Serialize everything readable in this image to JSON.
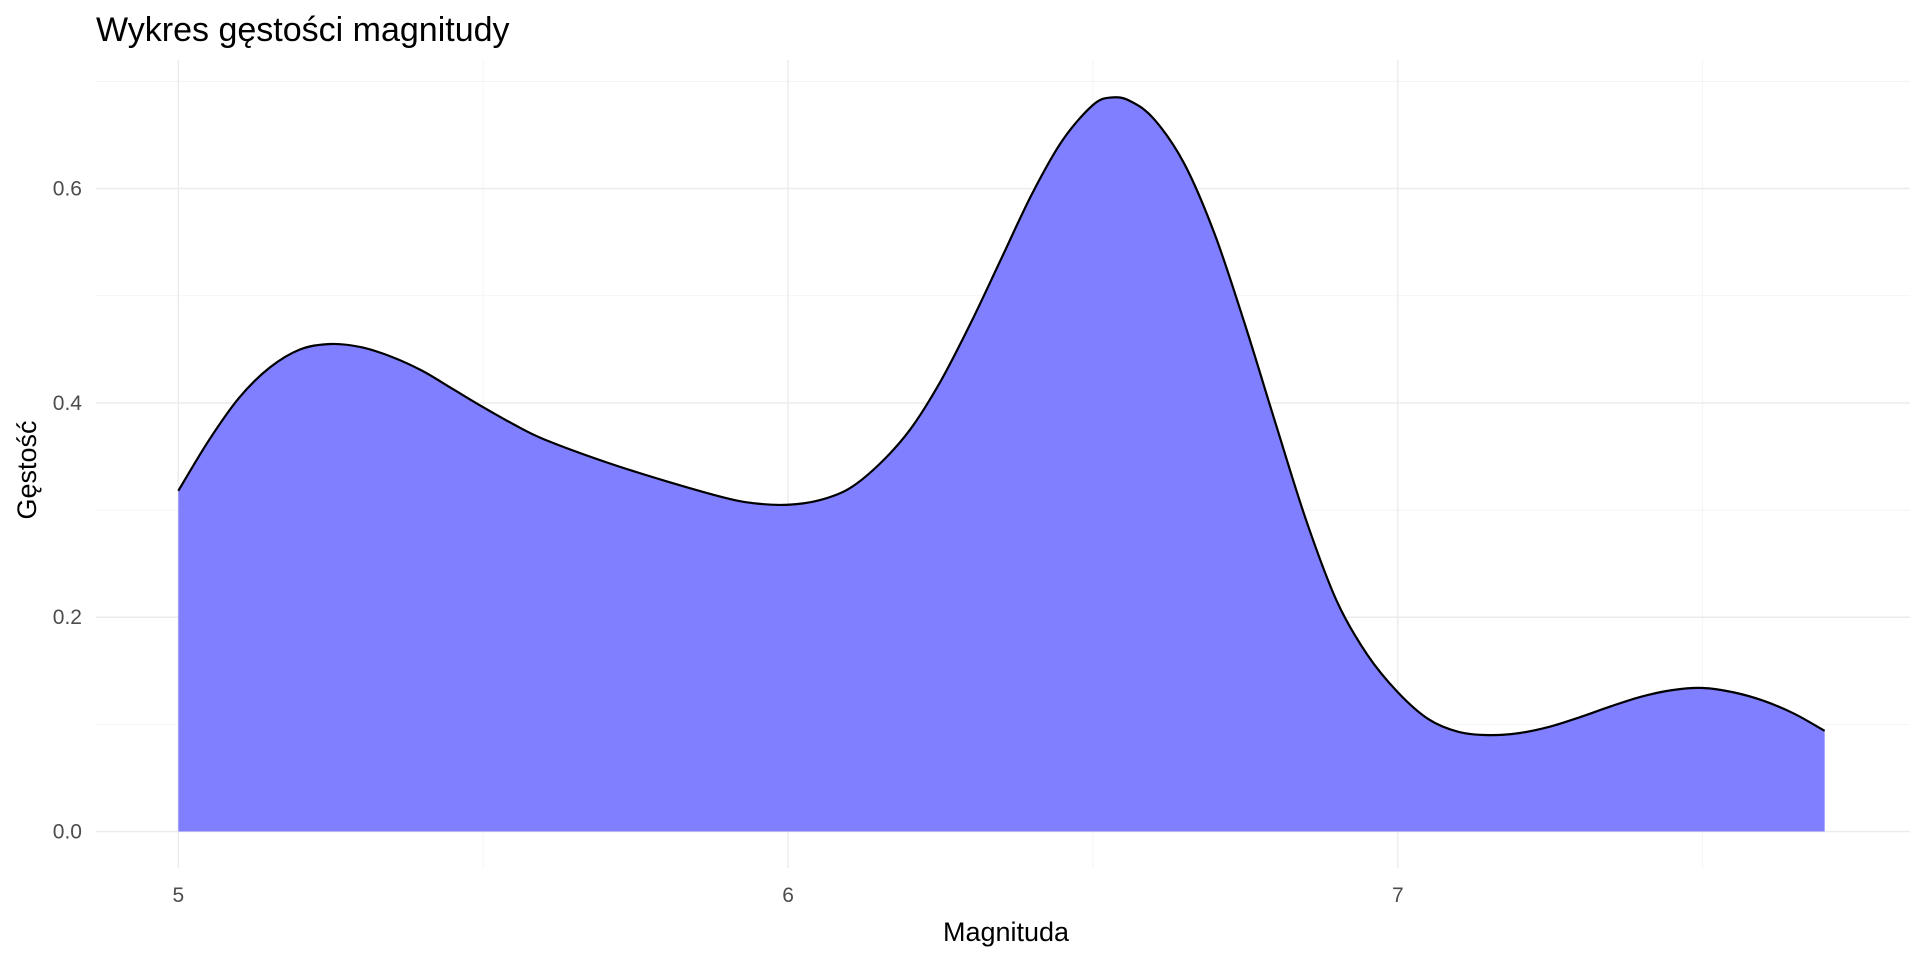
{
  "chart_data": {
    "type": "area",
    "title": "Wykres gęstości magnitudy",
    "xlabel": "Magnituda",
    "ylabel": "Gęstość",
    "xlim": [
      4.865,
      7.84
    ],
    "ylim": [
      -0.034,
      0.72
    ],
    "x_ticks": [
      5,
      6,
      7
    ],
    "x_tick_labels": [
      "5",
      "6",
      "7"
    ],
    "x_minor_ticks": [
      5.5,
      6.5,
      7.5
    ],
    "y_ticks": [
      0.0,
      0.2,
      0.4,
      0.6
    ],
    "y_tick_labels": [
      "0.0",
      "0.2",
      "0.4",
      "0.6"
    ],
    "y_minor_ticks": [
      0.1,
      0.3,
      0.5,
      0.7
    ],
    "grid": true,
    "fill_color": "#7f7fff",
    "line_color": "#000000",
    "series": [
      {
        "x": [
          5.0,
          5.05,
          5.1,
          5.15,
          5.2,
          5.25,
          5.3,
          5.35,
          5.4,
          5.45,
          5.5,
          5.55,
          5.6,
          5.7,
          5.8,
          5.9,
          5.95,
          6.0,
          6.05,
          6.1,
          6.15,
          6.2,
          6.25,
          6.3,
          6.35,
          6.4,
          6.45,
          6.5,
          6.53,
          6.56,
          6.6,
          6.65,
          6.7,
          6.75,
          6.8,
          6.85,
          6.9,
          6.95,
          7.0,
          7.05,
          7.1,
          7.15,
          7.2,
          7.25,
          7.3,
          7.35,
          7.4,
          7.45,
          7.5,
          7.55,
          7.6,
          7.65,
          7.7
        ],
        "y": [
          0.318,
          0.365,
          0.405,
          0.433,
          0.45,
          0.455,
          0.452,
          0.443,
          0.43,
          0.413,
          0.396,
          0.38,
          0.366,
          0.345,
          0.327,
          0.311,
          0.306,
          0.305,
          0.309,
          0.32,
          0.343,
          0.375,
          0.42,
          0.475,
          0.535,
          0.595,
          0.645,
          0.678,
          0.685,
          0.682,
          0.665,
          0.623,
          0.557,
          0.472,
          0.38,
          0.29,
          0.215,
          0.165,
          0.13,
          0.105,
          0.093,
          0.09,
          0.092,
          0.098,
          0.107,
          0.117,
          0.126,
          0.132,
          0.134,
          0.13,
          0.122,
          0.11,
          0.094
        ]
      }
    ]
  }
}
